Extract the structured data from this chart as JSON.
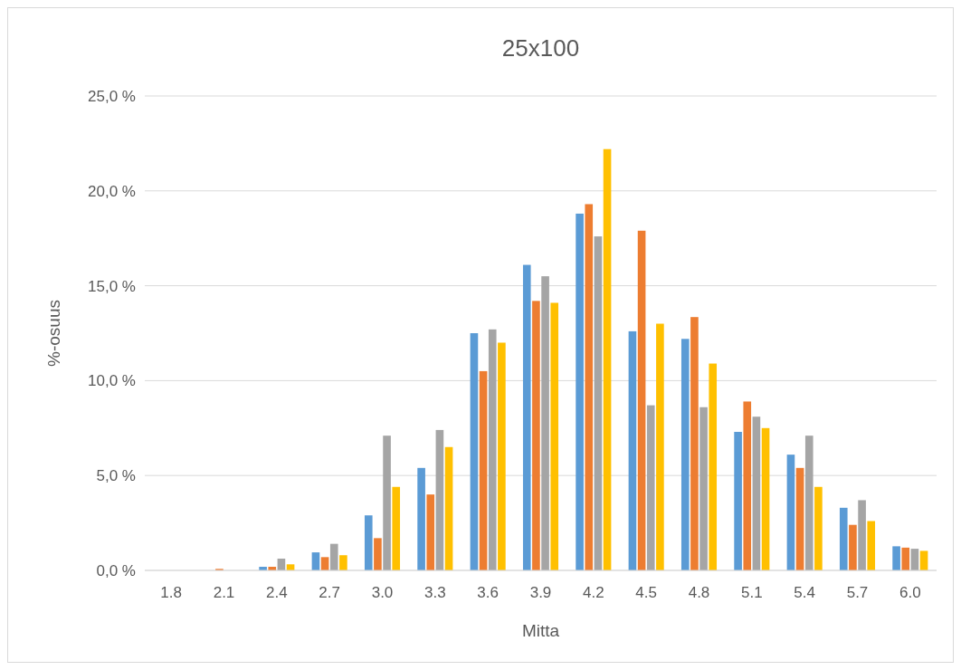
{
  "chart_data": {
    "type": "bar",
    "title": "25x100",
    "xlabel": "Mitta",
    "ylabel": "%-osuus",
    "categories": [
      "1.8",
      "2.1",
      "2.4",
      "2.7",
      "3.0",
      "3.3",
      "3.6",
      "3.9",
      "4.2",
      "4.5",
      "4.8",
      "5.1",
      "5.4",
      "5.7",
      "6.0"
    ],
    "series": [
      {
        "color": "#5b9bd5",
        "values": [
          0,
          0,
          0.19,
          0.95,
          2.9,
          5.4,
          12.5,
          16.1,
          18.8,
          12.6,
          12.2,
          7.3,
          6.1,
          3.3,
          1.27
        ]
      },
      {
        "color": "#ed7d31",
        "values": [
          0,
          0.08,
          0.19,
          0.7,
          1.7,
          4.0,
          10.5,
          14.2,
          19.3,
          17.9,
          13.35,
          8.9,
          5.4,
          2.4,
          1.2
        ]
      },
      {
        "color": "#a5a5a5",
        "values": [
          0,
          0,
          0.62,
          1.4,
          7.1,
          7.4,
          12.7,
          15.5,
          17.6,
          8.7,
          8.6,
          8.1,
          7.1,
          3.7,
          1.14
        ]
      },
      {
        "color": "#ffc000",
        "values": [
          0,
          0,
          0.32,
          0.8,
          4.4,
          6.5,
          12.0,
          14.1,
          22.2,
          13.0,
          10.9,
          7.5,
          4.4,
          2.6,
          1.03
        ]
      }
    ],
    "ylim": [
      0,
      25
    ],
    "yticks": [
      {
        "value": 0,
        "label": "0,0 %"
      },
      {
        "value": 5,
        "label": "5,0 %"
      },
      {
        "value": 10,
        "label": "10,0 %"
      },
      {
        "value": 15,
        "label": "15,0 %"
      },
      {
        "value": 20,
        "label": "20,0 %"
      },
      {
        "value": 25,
        "label": "25,0 %"
      }
    ],
    "grid": "y"
  }
}
